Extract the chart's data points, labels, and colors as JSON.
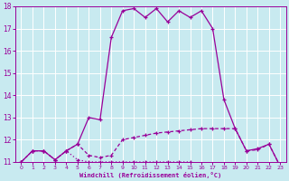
{
  "background_color": "#c8eaf0",
  "grid_color": "#ffffff",
  "line_color": "#990099",
  "xlabel": "Windchill (Refroidissement éolien,°C)",
  "xlim": [
    -0.5,
    23.5
  ],
  "ylim": [
    11,
    18
  ],
  "yticks": [
    11,
    12,
    13,
    14,
    15,
    16,
    17,
    18
  ],
  "xticks": [
    0,
    1,
    2,
    3,
    4,
    5,
    6,
    7,
    8,
    9,
    10,
    11,
    12,
    13,
    14,
    15,
    16,
    17,
    18,
    19,
    20,
    21,
    22,
    23
  ],
  "hours": [
    0,
    1,
    2,
    3,
    4,
    5,
    6,
    7,
    8,
    9,
    10,
    11,
    12,
    13,
    14,
    15,
    16,
    17,
    18,
    19,
    20,
    21,
    22,
    23
  ],
  "temp": [
    11.0,
    11.5,
    11.5,
    11.1,
    11.5,
    11.8,
    13.0,
    12.9,
    16.6,
    17.8,
    17.9,
    17.5,
    17.9,
    17.3,
    17.8,
    17.5,
    17.8,
    17.0,
    13.8,
    12.5,
    11.5,
    11.6,
    11.8,
    10.8
  ],
  "windchill": [
    11.0,
    11.5,
    11.5,
    11.1,
    11.5,
    11.8,
    11.3,
    11.2,
    11.3,
    12.0,
    12.1,
    12.2,
    12.3,
    12.35,
    12.4,
    12.45,
    12.5,
    12.5,
    12.5,
    12.5,
    11.5,
    11.55,
    11.8,
    10.8
  ],
  "feels_like": [
    11.0,
    11.5,
    11.5,
    11.1,
    11.5,
    11.1,
    11.0,
    11.0,
    11.0,
    11.0,
    11.0,
    11.0,
    11.0,
    11.0,
    11.0,
    11.0,
    10.9,
    10.9,
    10.9,
    10.9,
    10.9,
    10.9,
    10.8,
    10.8
  ]
}
